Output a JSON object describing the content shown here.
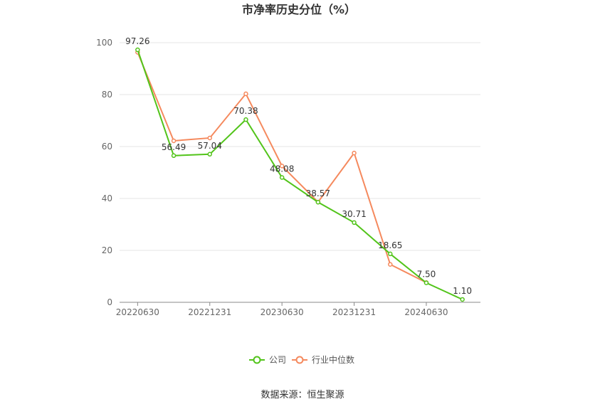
{
  "chart_data": {
    "type": "line",
    "title": "市净率历史分位（%）",
    "x": [
      "20220630",
      "20220930",
      "20221231",
      "20230331",
      "20230630",
      "20230930",
      "20231231",
      "20240331",
      "20240630",
      "20240930"
    ],
    "x_tick_labels": [
      "20220630",
      "20221231",
      "20230630",
      "20231231",
      "20240630"
    ],
    "y_ticks": [
      "0",
      "20",
      "40",
      "60",
      "80",
      "100"
    ],
    "ylim": [
      0,
      100
    ],
    "grid": true,
    "legend_position": "bottom-center",
    "series": [
      {
        "name": "公司",
        "color": "#52c41a",
        "values": [
          97.26,
          56.49,
          57.04,
          70.38,
          48.08,
          38.57,
          30.71,
          18.65,
          7.5,
          1.1
        ],
        "labels": [
          "97.26",
          "56.49",
          "57.04",
          "70.38",
          "48.08",
          "38.57",
          "30.71",
          "18.65",
          "7.50",
          "1.10"
        ]
      },
      {
        "name": "行业中位数",
        "color": "#f5895d",
        "values": [
          96.3,
          62.2,
          63.3,
          80.3,
          52.5,
          38.6,
          57.5,
          14.6,
          7.6,
          null
        ]
      }
    ]
  },
  "source": "数据来源：恒生聚源"
}
